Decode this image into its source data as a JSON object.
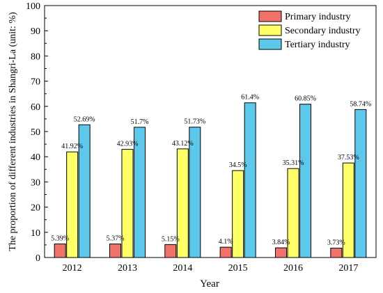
{
  "chart_data": {
    "type": "bar",
    "xlabel": "Year",
    "ylabel": "The proportion of different industries in Shangri-La (unit: %)",
    "ylim": [
      0,
      100
    ],
    "yticks": [
      0,
      10,
      20,
      30,
      40,
      50,
      60,
      70,
      80,
      90,
      100
    ],
    "categories": [
      "2012",
      "2013",
      "2014",
      "2015",
      "2016",
      "2017"
    ],
    "series": [
      {
        "name": "Primary industry",
        "color": "#f2726a",
        "values": [
          5.39,
          5.37,
          5.15,
          4.1,
          3.84,
          3.73
        ],
        "labels": [
          "5.39%",
          "5.37%",
          "5.15%",
          "4.1%",
          "3.84%",
          "3.73%"
        ]
      },
      {
        "name": "Secondary industry",
        "color": "#ffff66",
        "values": [
          41.92,
          42.93,
          43.12,
          34.5,
          35.31,
          37.53
        ],
        "labels": [
          "41.92%",
          "42.93%",
          "43.12%",
          "34.5%",
          "35.31%",
          "37.53%"
        ]
      },
      {
        "name": "Tertiary industry",
        "color": "#5bc8ec",
        "values": [
          52.69,
          51.7,
          51.73,
          61.4,
          60.85,
          58.74
        ],
        "labels": [
          "52.69%",
          "51.7%",
          "51.73%",
          "61.4%",
          "60.85%",
          "58.74%"
        ]
      }
    ],
    "legend_position": "top-right",
    "grid": false
  }
}
